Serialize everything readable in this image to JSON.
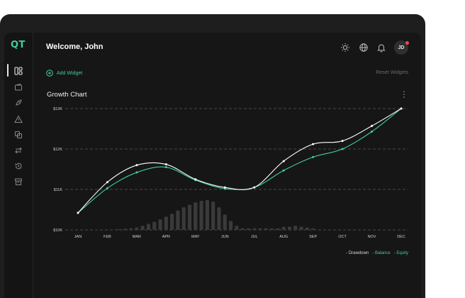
{
  "app": {
    "logo": "QT",
    "welcome": "Welcome, John"
  },
  "header": {
    "icons": [
      "sun-icon",
      "globe-icon",
      "bell-icon"
    ],
    "avatar_initials": "JD",
    "notification_dot_color": "#f04a4a"
  },
  "sidebar": {
    "items": [
      "dashboard-icon",
      "wallet-icon",
      "rocket-icon",
      "warning-icon",
      "copy-icon",
      "transfer-icon",
      "history-icon",
      "archive-icon"
    ],
    "active_index": 0
  },
  "toolbar": {
    "add_widget": "Add Widget",
    "reset_widgets": "Reset Widgets"
  },
  "widget": {
    "title": "Growth Chart"
  },
  "colors": {
    "accent": "#3ecf9a",
    "balance": "#ffffff",
    "equity": "#3ecf9a",
    "drawdown": "#3a3a3a"
  },
  "chart_data": {
    "type": "line",
    "categories": [
      "JAN",
      "FEB",
      "MAR",
      "APR",
      "MAY",
      "JUN",
      "JUL",
      "AUG",
      "SEP",
      "OCT",
      "NOV",
      "DEC"
    ],
    "yticks": [
      "$10K",
      "$11K",
      "$12K",
      "$13K"
    ],
    "ylim": [
      10000,
      13000
    ],
    "grid": true,
    "legend_position": "bottom-right",
    "series": [
      {
        "name": "Balance",
        "color": "#ffffff",
        "x": [
          0,
          1,
          2,
          3,
          4,
          5,
          6,
          7,
          8,
          9,
          10,
          11
        ],
        "values": [
          10420,
          11180,
          11600,
          11620,
          11250,
          11050,
          11050,
          11700,
          12120,
          12200,
          12570,
          13000
        ]
      },
      {
        "name": "Equity",
        "color": "#3ecf9a",
        "x": [
          0,
          1,
          2,
          3,
          4,
          5,
          6,
          7,
          8,
          9,
          10,
          11
        ],
        "values": [
          10420,
          11030,
          11420,
          11550,
          11230,
          11020,
          11050,
          11470,
          11800,
          12000,
          12430,
          13000
        ]
      },
      {
        "name": "Drawdown",
        "color": "#3a3a3a",
        "x": [
          1.4,
          1.6,
          1.8,
          2.0,
          2.2,
          2.4,
          2.6,
          2.8,
          3.0,
          3.2,
          3.4,
          3.6,
          3.8,
          4.0,
          4.2,
          4.4,
          4.6,
          4.8,
          5.0,
          5.2,
          5.4,
          5.6,
          5.8,
          6.0,
          6.2,
          6.4,
          6.6,
          6.8,
          7.0,
          7.2,
          7.4,
          7.6,
          7.8,
          8.0
        ],
        "values": [
          10020,
          10030,
          10040,
          10060,
          10100,
          10150,
          10200,
          10260,
          10330,
          10400,
          10480,
          10560,
          10620,
          10680,
          10720,
          10740,
          10700,
          10560,
          10380,
          10220,
          10100,
          10040,
          10040,
          10040,
          10040,
          10040,
          10040,
          10040,
          10080,
          10080,
          10100,
          10080,
          10060,
          10040
        ]
      }
    ],
    "legend": [
      "- Drawdown",
      "- Balance",
      "- Equity"
    ]
  }
}
